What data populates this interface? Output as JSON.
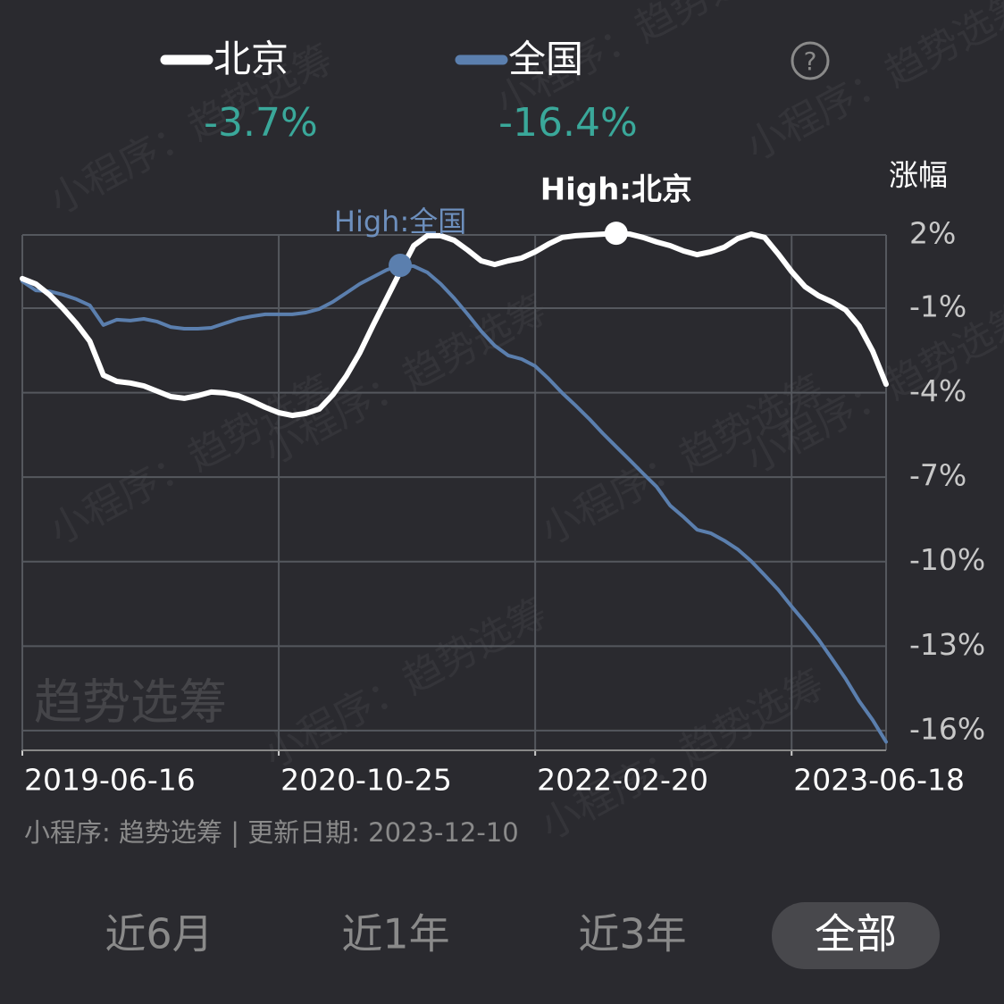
{
  "chart_data": {
    "type": "line",
    "y_title": "涨幅",
    "categories": [
      "2019-06-16",
      null,
      null,
      null,
      null,
      null,
      null,
      null,
      null,
      null,
      null,
      null,
      null,
      null,
      null,
      null,
      null,
      null,
      null,
      "2020-10-25",
      null,
      null,
      null,
      null,
      null,
      null,
      null,
      null,
      null,
      null,
      null,
      null,
      null,
      null,
      null,
      null,
      null,
      null,
      "2022-02-20",
      null,
      null,
      null,
      null,
      null,
      null,
      null,
      null,
      null,
      null,
      null,
      null,
      null,
      null,
      null,
      null,
      null,
      null,
      "2023-06-18",
      null,
      null,
      null,
      null,
      null,
      null,
      null
    ],
    "series": [
      {
        "name": "北京",
        "color": "#ffffff",
        "change": -3.7,
        "change_label": "-3.7%",
        "values": [
          0.05,
          -0.14,
          -0.52,
          -1.0,
          -1.54,
          -2.17,
          -3.38,
          -3.6,
          -3.66,
          -3.76,
          -3.95,
          -4.14,
          -4.2,
          -4.11,
          -3.98,
          -4.01,
          -4.11,
          -4.3,
          -4.52,
          -4.71,
          -4.81,
          -4.74,
          -4.58,
          -4.08,
          -3.41,
          -2.59,
          -1.6,
          -0.65,
          0.3,
          1.22,
          1.57,
          1.57,
          1.41,
          1.06,
          0.68,
          0.55,
          0.68,
          0.78,
          1.0,
          1.28,
          1.51,
          1.57,
          1.6,
          1.63,
          1.66,
          1.63,
          1.51,
          1.35,
          1.22,
          1.03,
          0.9,
          1.0,
          1.16,
          1.47,
          1.63,
          1.51,
          0.93,
          0.3,
          -0.24,
          -0.56,
          -0.78,
          -1.06,
          -1.63,
          -2.52,
          -3.7
        ]
      },
      {
        "name": "全国",
        "color": "#5b7fae",
        "change": -16.4,
        "change_label": "-16.4%",
        "values": [
          -0.05,
          -0.37,
          -0.4,
          -0.52,
          -0.68,
          -0.9,
          -1.6,
          -1.41,
          -1.44,
          -1.38,
          -1.48,
          -1.67,
          -1.73,
          -1.73,
          -1.7,
          -1.54,
          -1.38,
          -1.29,
          -1.22,
          -1.22,
          -1.22,
          -1.16,
          -1.03,
          -0.78,
          -0.46,
          -0.14,
          0.11,
          0.36,
          0.52,
          0.49,
          0.27,
          -0.14,
          -0.65,
          -1.22,
          -1.82,
          -2.33,
          -2.68,
          -2.81,
          -3.06,
          -3.51,
          -4.01,
          -4.46,
          -4.93,
          -5.44,
          -5.92,
          -6.39,
          -6.87,
          -7.34,
          -8.01,
          -8.42,
          -8.87,
          -8.99,
          -9.25,
          -9.56,
          -9.98,
          -10.48,
          -10.99,
          -11.59,
          -12.16,
          -12.77,
          -13.46,
          -14.16,
          -14.95,
          -15.62,
          -16.4
        ]
      }
    ],
    "annotations": [
      "High:北京",
      "High:全国"
    ],
    "ylim": [
      -16.7,
      1.6
    ],
    "yticks": [
      {
        "value": 1.6,
        "label": "2%"
      },
      {
        "value": -1,
        "label": "-1%"
      },
      {
        "value": -4,
        "label": "-4%"
      },
      {
        "value": -7,
        "label": "-7%"
      },
      {
        "value": -10,
        "label": "-10%"
      },
      {
        "value": -13,
        "label": "-13%"
      },
      {
        "value": -16,
        "label": "-16%"
      }
    ],
    "grid": true
  },
  "help_icon": "?",
  "footer": "小程序: 趋势选筹 | 更新日期: 2023-12-10",
  "watermark": "趋势选筹",
  "watermark_small": "小程序：趋势选筹",
  "tabs": {
    "items": [
      "近6月",
      "近1年",
      "近3年",
      "全部"
    ],
    "selected": 3
  }
}
